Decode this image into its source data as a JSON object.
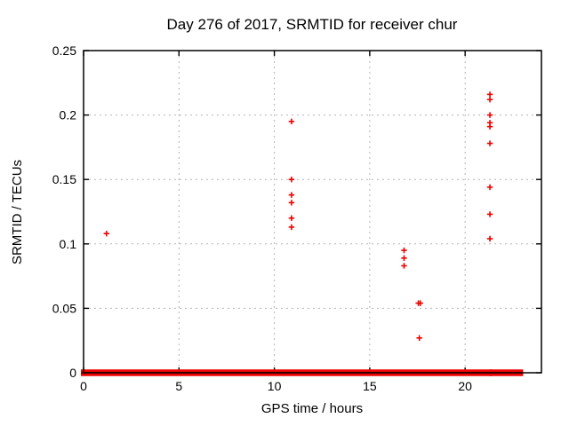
{
  "window": {
    "background": "#ffffff"
  },
  "chart_data": {
    "type": "scatter",
    "title": "Day 276 of 2017, SRMTID for receiver chur",
    "xlabel": "GPS time / hours",
    "ylabel": "SRMTID / TECUs",
    "xlim": [
      0,
      24
    ],
    "ylim": [
      0,
      0.25
    ],
    "grid": true,
    "legend": "none",
    "marker": "plus",
    "marker_color": "#ee0000",
    "grid_color": "#b3b3b3",
    "border_color": "#000000",
    "xticks": [
      {
        "v": 0,
        "label": "0"
      },
      {
        "v": 5,
        "label": "5"
      },
      {
        "v": 10,
        "label": "10"
      },
      {
        "v": 15,
        "label": "15"
      },
      {
        "v": 20,
        "label": "20"
      }
    ],
    "yticks": [
      {
        "v": 0,
        "label": "0"
      },
      {
        "v": 0.05,
        "label": "0.05"
      },
      {
        "v": 0.1,
        "label": "0.1"
      },
      {
        "v": 0.15,
        "label": "0.15"
      },
      {
        "v": 0.2,
        "label": "0.2"
      },
      {
        "v": 0.25,
        "label": "0.25"
      }
    ],
    "points": [
      [
        1.2,
        0.108
      ],
      [
        10.9,
        0.195
      ],
      [
        10.9,
        0.15
      ],
      [
        10.9,
        0.138
      ],
      [
        10.9,
        0.132
      ],
      [
        10.9,
        0.12
      ],
      [
        10.9,
        0.113
      ],
      [
        16.8,
        0.095
      ],
      [
        16.8,
        0.089
      ],
      [
        16.8,
        0.083
      ],
      [
        17.55,
        0.054
      ],
      [
        17.65,
        0.054
      ],
      [
        17.6,
        0.027
      ],
      [
        21.3,
        0.216
      ],
      [
        21.3,
        0.212
      ],
      [
        21.3,
        0.2
      ],
      [
        21.3,
        0.194
      ],
      [
        21.3,
        0.191
      ],
      [
        21.3,
        0.178
      ],
      [
        21.3,
        0.144
      ],
      [
        21.3,
        0.123
      ],
      [
        21.3,
        0.104
      ]
    ],
    "baseline_band": {
      "value": 0,
      "segments": [
        [
          0,
          21.26
        ],
        [
          21.4,
          22.9
        ]
      ],
      "description": "dense run of points at SRMTID = 0 covering most of the day"
    }
  }
}
